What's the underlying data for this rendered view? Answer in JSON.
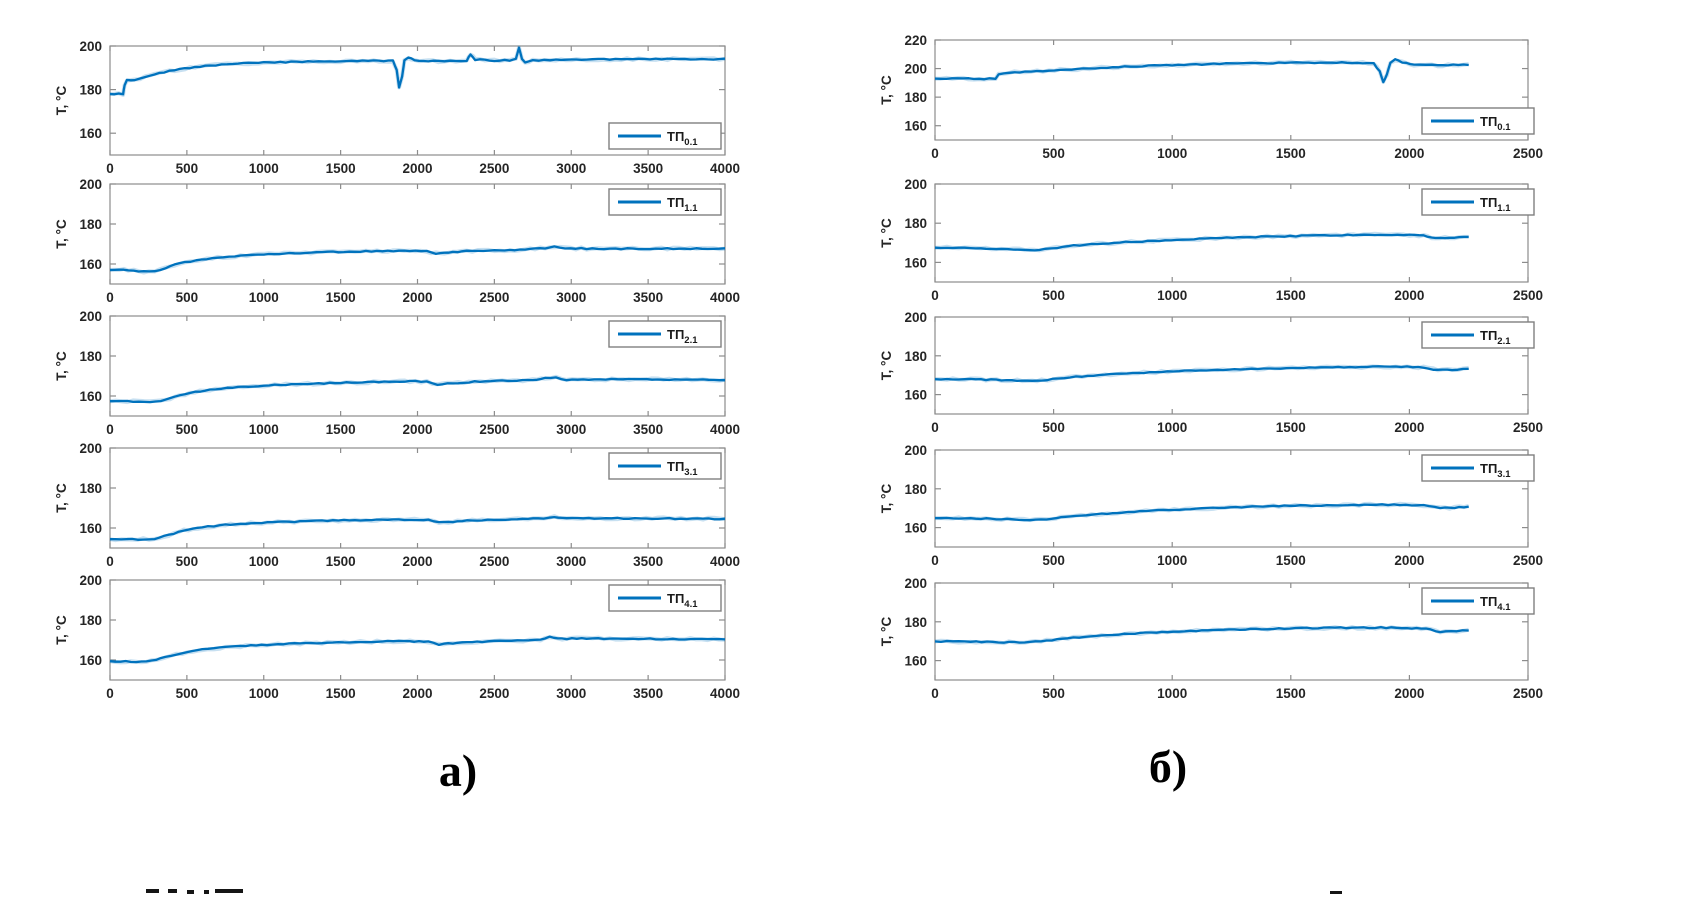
{
  "page": {
    "captions": {
      "left": "а)",
      "right": "б)"
    }
  },
  "style": {
    "line_color": "#0072BD",
    "axis_color": "#8c8c8c",
    "tick_label_color": "#252525",
    "legend_border": "#7f7f7f",
    "background": "#ffffff"
  },
  "chart_data": [
    {
      "id": "a-0",
      "type": "line",
      "column": "left",
      "row": 0,
      "ylabel": "T, °C",
      "legend": {
        "name": "ТП",
        "sub": "0.1",
        "position": "bottom-right"
      },
      "xlim": [
        0,
        4000
      ],
      "xticks": [
        0,
        500,
        1000,
        1500,
        2000,
        2500,
        3000,
        3500,
        4000
      ],
      "ylim": [
        150,
        200
      ],
      "yticks": [
        160,
        180,
        200
      ],
      "points": [
        [
          0,
          178
        ],
        [
          85,
          178
        ],
        [
          95,
          182
        ],
        [
          110,
          184.5
        ],
        [
          160,
          184.5
        ],
        [
          230,
          186
        ],
        [
          320,
          187.5
        ],
        [
          420,
          189
        ],
        [
          520,
          190
        ],
        [
          650,
          191
        ],
        [
          800,
          191.8
        ],
        [
          1000,
          192.4
        ],
        [
          1250,
          192.8
        ],
        [
          1500,
          193
        ],
        [
          1750,
          193.2
        ],
        [
          1840,
          193.2
        ],
        [
          1865,
          189
        ],
        [
          1880,
          181
        ],
        [
          1900,
          186
        ],
        [
          1915,
          193.5
        ],
        [
          1940,
          194.8
        ],
        [
          1980,
          193.5
        ],
        [
          2100,
          193
        ],
        [
          2250,
          193.2
        ],
        [
          2320,
          193.3
        ],
        [
          2345,
          196.3
        ],
        [
          2375,
          193.8
        ],
        [
          2500,
          193.3
        ],
        [
          2600,
          193.4
        ],
        [
          2640,
          194
        ],
        [
          2660,
          199.3
        ],
        [
          2680,
          194
        ],
        [
          2700,
          192.6
        ],
        [
          2750,
          193.4
        ],
        [
          2900,
          193.6
        ],
        [
          3100,
          193.8
        ],
        [
          3400,
          194
        ],
        [
          3700,
          194
        ],
        [
          4000,
          194
        ]
      ]
    },
    {
      "id": "a-1",
      "type": "line",
      "column": "left",
      "row": 1,
      "ylabel": "T, °C",
      "legend": {
        "name": "ТП",
        "sub": "1.1",
        "position": "top-right"
      },
      "xlim": [
        0,
        4000
      ],
      "xticks": [
        0,
        500,
        1000,
        1500,
        2000,
        2500,
        3000,
        3500,
        4000
      ],
      "ylim": [
        150,
        200
      ],
      "yticks": [
        160,
        180,
        200
      ],
      "points": [
        [
          0,
          157
        ],
        [
          120,
          157
        ],
        [
          220,
          156.2
        ],
        [
          290,
          156.4
        ],
        [
          360,
          158
        ],
        [
          450,
          160.3
        ],
        [
          560,
          161.8
        ],
        [
          700,
          163.2
        ],
        [
          850,
          164.2
        ],
        [
          1000,
          164.9
        ],
        [
          1200,
          165.5
        ],
        [
          1450,
          166
        ],
        [
          1700,
          166.4
        ],
        [
          1950,
          166.6
        ],
        [
          2060,
          166.4
        ],
        [
          2120,
          165.3
        ],
        [
          2200,
          165.6
        ],
        [
          2320,
          166.5
        ],
        [
          2500,
          166.8
        ],
        [
          2700,
          167.2
        ],
        [
          2830,
          168
        ],
        [
          2890,
          168.8
        ],
        [
          2960,
          167.9
        ],
        [
          3100,
          167.7
        ],
        [
          3400,
          167.6
        ],
        [
          3700,
          167.7
        ],
        [
          4000,
          167.6
        ]
      ]
    },
    {
      "id": "a-2",
      "type": "line",
      "column": "left",
      "row": 2,
      "ylabel": "T, °C",
      "legend": {
        "name": "ТП",
        "sub": "2.1",
        "position": "top-right"
      },
      "xlim": [
        0,
        4000
      ],
      "xticks": [
        0,
        500,
        1000,
        1500,
        2000,
        2500,
        3000,
        3500,
        4000
      ],
      "ylim": [
        150,
        200
      ],
      "yticks": [
        160,
        180,
        200
      ],
      "points": [
        [
          0,
          157.4
        ],
        [
          150,
          157.3
        ],
        [
          260,
          156.8
        ],
        [
          330,
          157.4
        ],
        [
          420,
          159.5
        ],
        [
          520,
          161.5
        ],
        [
          650,
          163
        ],
        [
          800,
          164.3
        ],
        [
          1000,
          165.2
        ],
        [
          1250,
          166
        ],
        [
          1500,
          166.6
        ],
        [
          1750,
          167
        ],
        [
          1950,
          167.3
        ],
        [
          2060,
          167.2
        ],
        [
          2130,
          165.8
        ],
        [
          2230,
          166.3
        ],
        [
          2370,
          167.2
        ],
        [
          2550,
          167.6
        ],
        [
          2750,
          167.9
        ],
        [
          2830,
          168.9
        ],
        [
          2900,
          169.1
        ],
        [
          2970,
          168.1
        ],
        [
          3150,
          168.3
        ],
        [
          3450,
          168.3
        ],
        [
          3750,
          168.1
        ],
        [
          4000,
          168
        ]
      ]
    },
    {
      "id": "a-3",
      "type": "line",
      "column": "left",
      "row": 3,
      "ylabel": "T, °C",
      "legend": {
        "name": "ТП",
        "sub": "3.1",
        "position": "top-right"
      },
      "xlim": [
        0,
        4000
      ],
      "xticks": [
        0,
        500,
        1000,
        1500,
        2000,
        2500,
        3000,
        3500,
        4000
      ],
      "ylim": [
        150,
        200
      ],
      "yticks": [
        160,
        180,
        200
      ],
      "points": [
        [
          0,
          154.4
        ],
        [
          180,
          154.3
        ],
        [
          290,
          154.6
        ],
        [
          380,
          156.5
        ],
        [
          480,
          158.8
        ],
        [
          600,
          160.4
        ],
        [
          750,
          161.6
        ],
        [
          950,
          162.5
        ],
        [
          1200,
          163.2
        ],
        [
          1450,
          163.7
        ],
        [
          1700,
          164
        ],
        [
          1950,
          164.2
        ],
        [
          2070,
          164
        ],
        [
          2140,
          162.7
        ],
        [
          2260,
          163.3
        ],
        [
          2420,
          164
        ],
        [
          2650,
          164.4
        ],
        [
          2820,
          164.7
        ],
        [
          2890,
          165.6
        ],
        [
          2970,
          164.9
        ],
        [
          3150,
          164.9
        ],
        [
          3450,
          164.8
        ],
        [
          3750,
          164.7
        ],
        [
          4000,
          164.6
        ]
      ]
    },
    {
      "id": "a-4",
      "type": "line",
      "column": "left",
      "row": 4,
      "ylabel": "T, °C",
      "legend": {
        "name": "ТП",
        "sub": "4.1",
        "position": "top-right"
      },
      "xlim": [
        0,
        4000
      ],
      "xticks": [
        0,
        500,
        1000,
        1500,
        2000,
        2500,
        3000,
        3500,
        4000
      ],
      "ylim": [
        150,
        200
      ],
      "yticks": [
        160,
        180,
        200
      ],
      "points": [
        [
          0,
          159.4
        ],
        [
          170,
          159.2
        ],
        [
          270,
          159.6
        ],
        [
          360,
          161.5
        ],
        [
          470,
          163.5
        ],
        [
          600,
          165.2
        ],
        [
          750,
          166.4
        ],
        [
          950,
          167.4
        ],
        [
          1200,
          168.2
        ],
        [
          1450,
          168.8
        ],
        [
          1700,
          169.2
        ],
        [
          1950,
          169.4
        ],
        [
          2070,
          169.2
        ],
        [
          2140,
          167.8
        ],
        [
          2260,
          168.6
        ],
        [
          2420,
          169.2
        ],
        [
          2650,
          169.7
        ],
        [
          2800,
          170.1
        ],
        [
          2860,
          171.7
        ],
        [
          2940,
          170.6
        ],
        [
          3100,
          170.8
        ],
        [
          3400,
          170.6
        ],
        [
          3700,
          170.5
        ],
        [
          4000,
          170.5
        ]
      ]
    },
    {
      "id": "b-0",
      "type": "line",
      "column": "right",
      "row": 0,
      "ylabel": "T, °C",
      "legend": {
        "name": "ТП",
        "sub": "0.1",
        "position": "bottom-right"
      },
      "xlim": [
        0,
        2500
      ],
      "xticks": [
        0,
        500,
        1000,
        1500,
        2000,
        2500
      ],
      "ylim": [
        150,
        220
      ],
      "yticks": [
        160,
        180,
        200,
        220
      ],
      "points": [
        [
          0,
          193
        ],
        [
          120,
          193
        ],
        [
          230,
          192.8
        ],
        [
          255,
          193
        ],
        [
          268,
          196.3
        ],
        [
          290,
          197
        ],
        [
          380,
          197.6
        ],
        [
          480,
          198.6
        ],
        [
          600,
          199.7
        ],
        [
          750,
          200.9
        ],
        [
          900,
          201.9
        ],
        [
          1050,
          202.7
        ],
        [
          1200,
          203.3
        ],
        [
          1350,
          203.8
        ],
        [
          1500,
          204.1
        ],
        [
          1650,
          204.2
        ],
        [
          1780,
          204
        ],
        [
          1850,
          203.6
        ],
        [
          1875,
          198
        ],
        [
          1890,
          190.5
        ],
        [
          1905,
          196
        ],
        [
          1920,
          204
        ],
        [
          1940,
          206.2
        ],
        [
          1970,
          204.5
        ],
        [
          2020,
          202.6
        ],
        [
          2120,
          202.3
        ],
        [
          2250,
          202.6
        ]
      ]
    },
    {
      "id": "b-1",
      "type": "line",
      "column": "right",
      "row": 1,
      "ylabel": "T, °C",
      "legend": {
        "name": "ТП",
        "sub": "1.1",
        "position": "top-right"
      },
      "xlim": [
        0,
        2500
      ],
      "xticks": [
        0,
        500,
        1000,
        1500,
        2000,
        2500
      ],
      "ylim": [
        150,
        200
      ],
      "yticks": [
        160,
        180,
        200
      ],
      "points": [
        [
          0,
          167.5
        ],
        [
          150,
          167.4
        ],
        [
          280,
          167
        ],
        [
          380,
          166.6
        ],
        [
          440,
          166.3
        ],
        [
          490,
          167
        ],
        [
          560,
          168.3
        ],
        [
          660,
          169.3
        ],
        [
          780,
          170.2
        ],
        [
          920,
          171
        ],
        [
          1070,
          171.8
        ],
        [
          1230,
          172.5
        ],
        [
          1400,
          173.1
        ],
        [
          1570,
          173.6
        ],
        [
          1740,
          173.9
        ],
        [
          1900,
          174.1
        ],
        [
          2000,
          174
        ],
        [
          2060,
          173.7
        ],
        [
          2110,
          172.4
        ],
        [
          2170,
          172.6
        ],
        [
          2250,
          173.3
        ]
      ]
    },
    {
      "id": "b-2",
      "type": "line",
      "column": "right",
      "row": 2,
      "ylabel": "T, °C",
      "legend": {
        "name": "ТП",
        "sub": "2.1",
        "position": "top-right"
      },
      "xlim": [
        0,
        2500
      ],
      "xticks": [
        0,
        500,
        1000,
        1500,
        2000,
        2500
      ],
      "ylim": [
        150,
        200
      ],
      "yticks": [
        160,
        180,
        200
      ],
      "points": [
        [
          0,
          168
        ],
        [
          150,
          167.9
        ],
        [
          280,
          167.5
        ],
        [
          390,
          167.1
        ],
        [
          450,
          167.3
        ],
        [
          520,
          168.3
        ],
        [
          620,
          169.4
        ],
        [
          740,
          170.4
        ],
        [
          880,
          171.3
        ],
        [
          1030,
          172.1
        ],
        [
          1190,
          172.7
        ],
        [
          1360,
          173.3
        ],
        [
          1530,
          173.8
        ],
        [
          1700,
          174.1
        ],
        [
          1870,
          174.3
        ],
        [
          1990,
          174.3
        ],
        [
          2060,
          174
        ],
        [
          2120,
          172.6
        ],
        [
          2180,
          172.8
        ],
        [
          2250,
          173.4
        ]
      ]
    },
    {
      "id": "b-3",
      "type": "line",
      "column": "right",
      "row": 3,
      "ylabel": "T, °C",
      "legend": {
        "name": "ТП",
        "sub": "3.1",
        "position": "top-right"
      },
      "xlim": [
        0,
        2500
      ],
      "xticks": [
        0,
        500,
        1000,
        1500,
        2000,
        2500
      ],
      "ylim": [
        150,
        200
      ],
      "yticks": [
        160,
        180,
        200
      ],
      "points": [
        [
          0,
          164.9
        ],
        [
          150,
          164.8
        ],
        [
          280,
          164.4
        ],
        [
          400,
          164
        ],
        [
          470,
          164.3
        ],
        [
          550,
          165.4
        ],
        [
          660,
          166.6
        ],
        [
          790,
          167.8
        ],
        [
          940,
          168.9
        ],
        [
          1100,
          169.8
        ],
        [
          1270,
          170.5
        ],
        [
          1450,
          171.1
        ],
        [
          1630,
          171.5
        ],
        [
          1810,
          171.7
        ],
        [
          1960,
          171.8
        ],
        [
          2060,
          171.5
        ],
        [
          2130,
          170
        ],
        [
          2190,
          170.3
        ],
        [
          2250,
          170.8
        ]
      ]
    },
    {
      "id": "b-4",
      "type": "line",
      "column": "right",
      "row": 4,
      "ylabel": "T, °C",
      "legend": {
        "name": "ТП",
        "sub": "4.1",
        "position": "top-right"
      },
      "xlim": [
        0,
        2500
      ],
      "xticks": [
        0,
        500,
        1000,
        1500,
        2000,
        2500
      ],
      "ylim": [
        150,
        200
      ],
      "yticks": [
        160,
        180,
        200
      ],
      "points": [
        [
          0,
          169.9
        ],
        [
          150,
          169.8
        ],
        [
          290,
          169.5
        ],
        [
          400,
          169.4
        ],
        [
          470,
          170.2
        ],
        [
          560,
          171.5
        ],
        [
          680,
          172.8
        ],
        [
          820,
          173.9
        ],
        [
          980,
          174.8
        ],
        [
          1150,
          175.6
        ],
        [
          1330,
          176.2
        ],
        [
          1520,
          176.7
        ],
        [
          1710,
          176.9
        ],
        [
          1880,
          177
        ],
        [
          1990,
          176.8
        ],
        [
          2070,
          176.4
        ],
        [
          2130,
          174.9
        ],
        [
          2200,
          175.2
        ],
        [
          2250,
          175.6
        ]
      ]
    }
  ]
}
